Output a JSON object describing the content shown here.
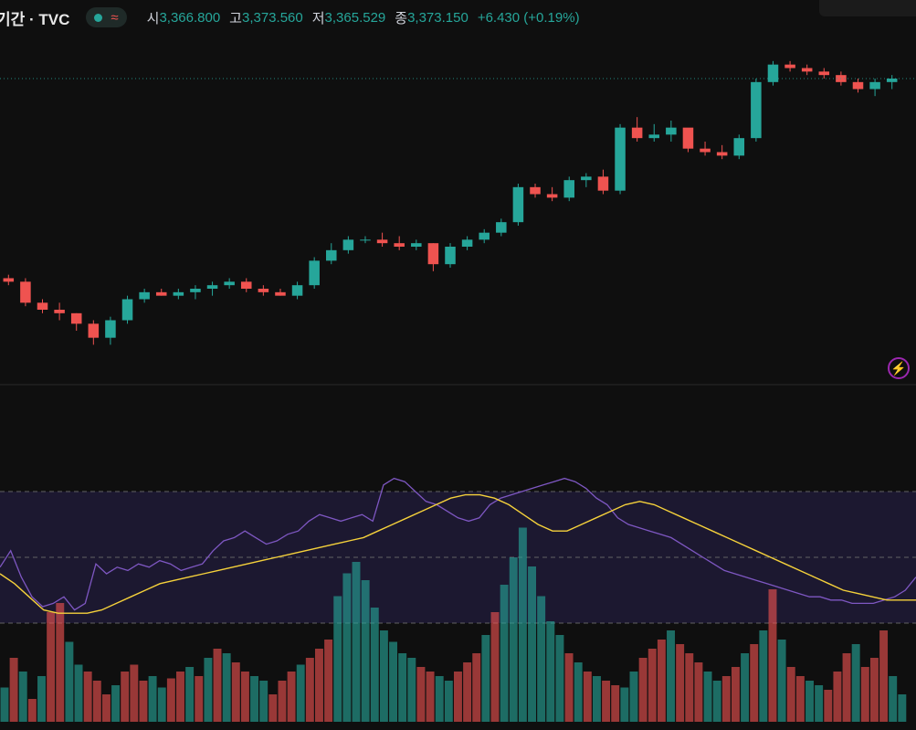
{
  "legend": {
    "symbol": "기간 · TVC",
    "status_icon": "green-dot-icon",
    "wave_icon": "approx-wave-icon",
    "open_label": "시",
    "open": "3,366.800",
    "high_label": "고",
    "high": "3,373.560",
    "low_label": "저",
    "low": "3,365.529",
    "close_label": "종",
    "close": "3,373.150",
    "change": "+6.430 (+0.19%)"
  },
  "colors": {
    "up": "#26a69a",
    "down": "#ef5350",
    "rsi": "#7e57c2",
    "rsi_ma": "#f5d13b",
    "background": "#0f0f0f"
  },
  "indicator_icon": "lightning-icon",
  "chart_data": [
    {
      "type": "candlestick",
      "candles_ohlc": [
        [
          3351,
          3352,
          3349,
          3350
        ],
        [
          3350,
          3351,
          3343,
          3344
        ],
        [
          3344,
          3345,
          3341,
          3342
        ],
        [
          3342,
          3344,
          3339,
          3341
        ],
        [
          3341,
          3341,
          3336,
          3338
        ],
        [
          3338,
          3339,
          3332,
          3334
        ],
        [
          3334,
          3340,
          3332,
          3339
        ],
        [
          3339,
          3346,
          3338,
          3345
        ],
        [
          3345,
          3348,
          3344,
          3347
        ],
        [
          3347,
          3348,
          3346,
          3346
        ],
        [
          3346,
          3348,
          3345,
          3347
        ],
        [
          3347,
          3349,
          3345,
          3348
        ],
        [
          3348,
          3350,
          3346,
          3349
        ],
        [
          3349,
          3351,
          3348,
          3350
        ],
        [
          3350,
          3351,
          3347,
          3348
        ],
        [
          3348,
          3349,
          3346,
          3347
        ],
        [
          3347,
          3348,
          3346,
          3346
        ],
        [
          3346,
          3350,
          3345,
          3349
        ],
        [
          3349,
          3357,
          3348,
          3356
        ],
        [
          3356,
          3361,
          3355,
          3359
        ],
        [
          3359,
          3363,
          3358,
          3362
        ],
        [
          3362,
          3363,
          3361,
          3362
        ],
        [
          3362,
          3364,
          3360,
          3361
        ],
        [
          3361,
          3363,
          3359,
          3360
        ],
        [
          3360,
          3362,
          3359,
          3361
        ],
        [
          3361,
          3361,
          3353,
          3355
        ],
        [
          3355,
          3361,
          3354,
          3360
        ],
        [
          3360,
          3363,
          3359,
          3362
        ],
        [
          3362,
          3365,
          3361,
          3364
        ],
        [
          3364,
          3368,
          3363,
          3367
        ],
        [
          3367,
          3378,
          3366,
          3377
        ],
        [
          3377,
          3378,
          3374,
          3375
        ],
        [
          3375,
          3377,
          3373,
          3374
        ],
        [
          3374,
          3380,
          3373,
          3379
        ],
        [
          3379,
          3381,
          3377,
          3380
        ],
        [
          3380,
          3382,
          3375,
          3376
        ],
        [
          3376,
          3395,
          3375,
          3394
        ],
        [
          3394,
          3397,
          3390,
          3391
        ],
        [
          3391,
          3395,
          3390,
          3392
        ],
        [
          3392,
          3396,
          3390,
          3394
        ],
        [
          3394,
          3392,
          3387,
          3388
        ],
        [
          3388,
          3390,
          3386,
          3387
        ],
        [
          3387,
          3389,
          3385,
          3386
        ],
        [
          3386,
          3392,
          3385,
          3391
        ],
        [
          3391,
          3408,
          3390,
          3407
        ],
        [
          3407,
          3413,
          3406,
          3412
        ],
        [
          3412,
          3413,
          3410,
          3411
        ],
        [
          3411,
          3412,
          3409,
          3410
        ],
        [
          3410,
          3411,
          3408,
          3409
        ],
        [
          3409,
          3410,
          3406,
          3407
        ],
        [
          3407,
          3408,
          3404,
          3405
        ],
        [
          3405,
          3408,
          3403,
          3407
        ],
        [
          3407,
          3409,
          3405,
          3408
        ]
      ],
      "last_price_line": true
    },
    {
      "type": "line",
      "series": [
        {
          "values": [
            47,
            52,
            44,
            38,
            35,
            36,
            38,
            34,
            36,
            48,
            45,
            47,
            46,
            48,
            47,
            49,
            48,
            46,
            47,
            48,
            52,
            55,
            56,
            58,
            56,
            54,
            55,
            57,
            58,
            61,
            63,
            62,
            61,
            62,
            63,
            61,
            72,
            74,
            73,
            70,
            67,
            66,
            64,
            62,
            61,
            62,
            66,
            68,
            69,
            70,
            71,
            72,
            73,
            74,
            73,
            71,
            68,
            66,
            62,
            60,
            59,
            58,
            57,
            56,
            54,
            52,
            50,
            48,
            46,
            45,
            44,
            43,
            42,
            41,
            40,
            39,
            38,
            38,
            37,
            37,
            36,
            36,
            36,
            37,
            38,
            40,
            44
          ]
        },
        {
          "values": [
            45,
            42,
            38,
            34,
            33,
            33,
            33,
            34,
            36,
            38,
            40,
            42,
            43,
            44,
            45,
            46,
            47,
            48,
            49,
            50,
            51,
            52,
            53,
            54,
            55,
            56,
            58,
            60,
            62,
            64,
            66,
            68,
            69,
            69,
            68,
            66,
            63,
            60,
            58,
            58,
            60,
            62,
            64,
            66,
            67,
            66,
            64,
            62,
            60,
            58,
            56,
            54,
            52,
            50,
            48,
            46,
            44,
            42,
            40,
            39,
            38,
            37,
            37,
            37
          ]
        }
      ]
    },
    {
      "type": "bar",
      "values": [
        15,
        28,
        22,
        10,
        20,
        48,
        52,
        35,
        25,
        22,
        18,
        12,
        16,
        22,
        25,
        18,
        20,
        15,
        19,
        22,
        24,
        20,
        28,
        32,
        30,
        26,
        22,
        20,
        18,
        12,
        18,
        22,
        25,
        28,
        32,
        36,
        55,
        65,
        70,
        62,
        50,
        40,
        35,
        30,
        28,
        24,
        22,
        20,
        18,
        22,
        26,
        30,
        38,
        48,
        60,
        72,
        85,
        68,
        55,
        44,
        38,
        30,
        26,
        22,
        20,
        18,
        16,
        15,
        22,
        28,
        32,
        36,
        40,
        34,
        30,
        26,
        22,
        18,
        20,
        24,
        30,
        34,
        40,
        58,
        36,
        24,
        20,
        18,
        16,
        14,
        22,
        30,
        34,
        24,
        28,
        40,
        20,
        12
      ]
    }
  ]
}
